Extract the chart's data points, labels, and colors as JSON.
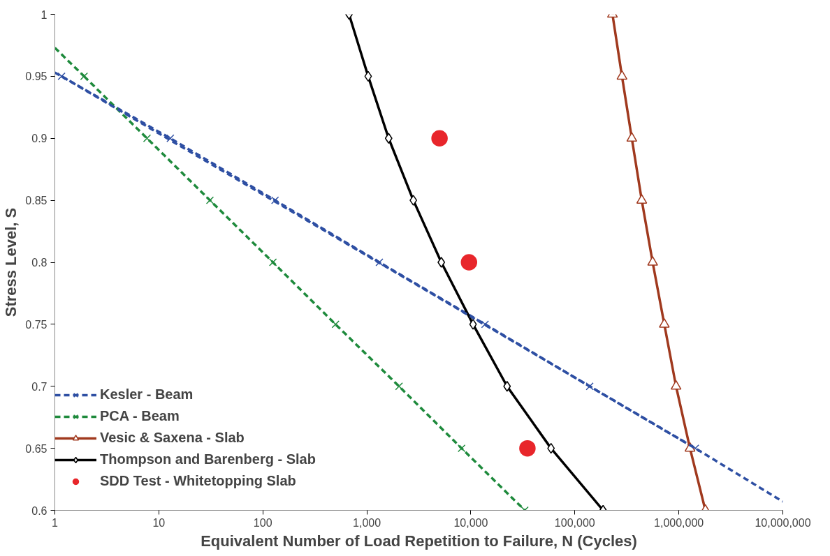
{
  "chart_data": {
    "type": "line",
    "xlabel": "Equivalent Number of Load Repetition to Failure, N (Cycles)",
    "ylabel": "Stress Level, S",
    "log": "x",
    "xlim": [
      1,
      10000000
    ],
    "ylim": [
      0.6,
      1
    ],
    "xticks": [
      1,
      10,
      100,
      {
        "value": 1000,
        "label": "1,000"
      },
      {
        "value": 10000,
        "label": "10,000"
      },
      {
        "value": 100000,
        "label": "100,000"
      },
      {
        "value": 1000000,
        "label": "1,000,000"
      },
      {
        "value": 10000000,
        "label": "10,000,000"
      }
    ],
    "yticks": [
      0.6,
      0.65,
      0.7,
      0.75,
      0.8,
      0.85,
      0.9,
      0.95,
      1
    ],
    "grid": false,
    "legend": "left",
    "series": [
      {
        "name": "Kesler - Beam",
        "color": "#2e4fa3",
        "marker": "cross",
        "line_style": "dashed",
        "x": [
          1.16,
          12.9,
          131,
          1320,
          13700,
          139000,
          1440000
        ],
        "values": [
          0.95,
          0.9,
          0.85,
          0.8,
          0.75,
          0.7,
          0.65
        ]
      },
      {
        "name": "PCA - Beam",
        "color": "#1e8a3c",
        "marker": "cross",
        "line_style": "dashed",
        "x": [
          1.91,
          7.7,
          31,
          125,
          500,
          2040,
          8150,
          33000
        ],
        "values": [
          0.95,
          0.9,
          0.85,
          0.8,
          0.75,
          0.7,
          0.65,
          0.6
        ]
      },
      {
        "name": "Vesic & Saxena - Slab",
        "color": "#a0391e",
        "marker": "triangle",
        "line_style": "solid",
        "x": [
          230000,
          284000,
          353000,
          440000,
          560000,
          725000,
          940000,
          1280000,
          1800000
        ],
        "values": [
          1,
          0.95,
          0.9,
          0.85,
          0.8,
          0.75,
          0.7,
          0.65,
          0.6
        ]
      },
      {
        "name": "Thompson and Barenberg - Slab",
        "color": "#000000",
        "marker": "diamond",
        "line_style": "solid",
        "x": [
          674,
          1030,
          1620,
          2800,
          5200,
          10500,
          22300,
          59000,
          187000
        ],
        "values": [
          1,
          0.95,
          0.9,
          0.85,
          0.8,
          0.75,
          0.7,
          0.65,
          0.6
        ]
      },
      {
        "name": "SDD Test - Whitetopping Slab",
        "type": "scatter",
        "color": "#e8262b",
        "marker": "circle",
        "x": [
          5000,
          9600,
          35000
        ],
        "values": [
          0.9,
          0.8,
          0.65
        ]
      },
      {
        "color": "#2e4fa3",
        "marker": "none",
        "line_style": "dashed",
        "x": [
          1,
          1.16,
          1440000,
          10000000
        ],
        "values": [
          0.953,
          0.95,
          0.65,
          0.607
        ]
      },
      {
        "color": "#1e8a3c",
        "marker": "none",
        "line_style": "dashed",
        "x": [
          1,
          1.91
        ],
        "values": [
          0.973,
          0.95
        ]
      }
    ]
  }
}
